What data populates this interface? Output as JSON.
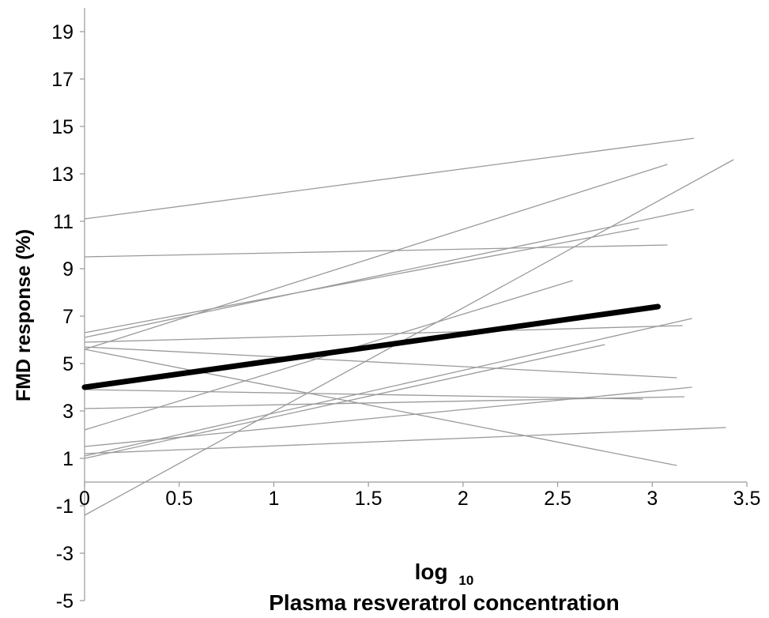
{
  "chart_data": {
    "type": "line",
    "ylabel": "FMD response (%)",
    "xlabel_line1": "log",
    "xlabel_subscript": "10",
    "xlabel_line2": "Plasma resveratrol concentration",
    "xlim": [
      0,
      3.5
    ],
    "ylim": [
      -5,
      19
    ],
    "x_ticks": [
      "0",
      "0.5",
      "1",
      "1.5",
      "2",
      "2.5",
      "3",
      "3.5"
    ],
    "y_ticks": [
      "19",
      "17",
      "15",
      "13",
      "11",
      "9",
      "7",
      "5",
      "3",
      "1",
      "-1",
      "-3",
      "-5"
    ],
    "grid": false,
    "colors": {
      "individual": "#9a9a9a",
      "mean": "#000000"
    },
    "individual_lines": [
      {
        "x": [
          0,
          3.22
        ],
        "y": [
          11.1,
          14.5
        ]
      },
      {
        "x": [
          0,
          3.08
        ],
        "y": [
          5.6,
          13.4
        ]
      },
      {
        "x": [
          0,
          3.43
        ],
        "y": [
          -1.4,
          13.6
        ]
      },
      {
        "x": [
          0,
          3.22
        ],
        "y": [
          6.1,
          11.5
        ]
      },
      {
        "x": [
          0,
          2.93
        ],
        "y": [
          6.3,
          10.7
        ]
      },
      {
        "x": [
          0,
          3.08
        ],
        "y": [
          9.5,
          10.0
        ]
      },
      {
        "x": [
          0,
          2.58
        ],
        "y": [
          2.2,
          8.5
        ]
      },
      {
        "x": [
          0,
          3.21
        ],
        "y": [
          1.1,
          6.9
        ]
      },
      {
        "x": [
          0,
          3.16
        ],
        "y": [
          5.9,
          6.6
        ]
      },
      {
        "x": [
          0,
          2.75
        ],
        "y": [
          1.0,
          5.8
        ]
      },
      {
        "x": [
          0,
          3.13
        ],
        "y": [
          5.7,
          4.4
        ]
      },
      {
        "x": [
          0,
          3.13
        ],
        "y": [
          5.6,
          0.7
        ]
      },
      {
        "x": [
          0,
          3.21
        ],
        "y": [
          1.5,
          4.0
        ]
      },
      {
        "x": [
          0,
          3.17
        ],
        "y": [
          3.1,
          3.6
        ]
      },
      {
        "x": [
          0,
          2.95
        ],
        "y": [
          3.9,
          3.5
        ]
      },
      {
        "x": [
          0,
          3.39
        ],
        "y": [
          1.2,
          2.3
        ]
      }
    ],
    "mean_line": {
      "x": [
        0,
        3.03
      ],
      "y": [
        4.0,
        7.4
      ]
    }
  }
}
